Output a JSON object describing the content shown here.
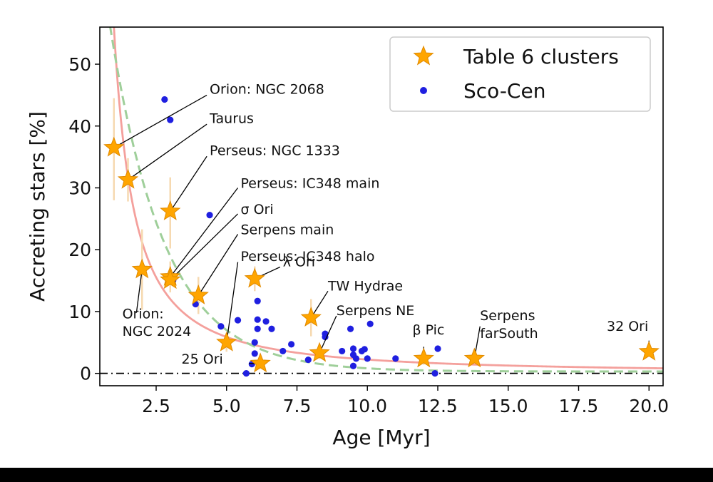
{
  "chart_data": {
    "type": "scatter",
    "xlabel": "Age [Myr]",
    "ylabel": "Accreting stars [%]",
    "xlim": [
      0.5,
      20.5
    ],
    "ylim": [
      -2,
      56
    ],
    "x_ticks": [
      2.5,
      5.0,
      7.5,
      10.0,
      12.5,
      15.0,
      17.5,
      20.0
    ],
    "x_tick_labels": [
      "2.5",
      "5.0",
      "7.5",
      "10.0",
      "12.5",
      "15.0",
      "17.5",
      "20.0"
    ],
    "y_ticks": [
      0,
      10,
      20,
      30,
      40,
      50
    ],
    "y_tick_labels": [
      "0",
      "10",
      "20",
      "30",
      "40",
      "50"
    ],
    "legend": {
      "position": "top-right",
      "entries": [
        {
          "label": "Table 6 clusters",
          "marker": "star",
          "color": "#FFA500"
        },
        {
          "label": "Sco-Cen",
          "marker": "dot",
          "color": "#1f1fe0"
        }
      ]
    },
    "colors": {
      "star": "#FFA500",
      "star_edge": "#e08a00",
      "scocen": "#1f1fe0",
      "fit_solid": "#f4a09c",
      "fit_dashed": "#9fcf9a",
      "errorbar": "#f6d9b0",
      "zero_line": "#000000"
    },
    "lines": [
      {
        "name": "fit-solid",
        "style": "solid",
        "model": "power",
        "a": 56,
        "n": 1.4,
        "offset": 0
      },
      {
        "name": "fit-dashed",
        "style": "dashed",
        "model": "exp",
        "a": 87,
        "tau": 1.95,
        "offset": 0.3
      },
      {
        "name": "zero-line",
        "style": "dashdot",
        "y": 0
      }
    ],
    "clusters": [
      {
        "name": "Orion: NGC 2068",
        "x": 1.0,
        "y": 36.5,
        "yerr": [
          8.5,
          8.0
        ],
        "label_lines": [
          "Orion: NGC 2068"
        ]
      },
      {
        "name": "Taurus",
        "x": 1.5,
        "y": 31.3,
        "yerr": [
          3.5,
          3.5
        ],
        "label_lines": [
          "Taurus"
        ]
      },
      {
        "name": "Perseus: NGC 1333",
        "x": 3.0,
        "y": 26.2,
        "yerr": [
          6.0,
          5.5
        ],
        "label_lines": [
          "Perseus: NGC 1333"
        ]
      },
      {
        "name": "Perseus: IC348 main",
        "x": 3.0,
        "y": 15.6,
        "yerr": [
          2.5,
          2.5
        ],
        "label_lines": [
          "Perseus: IC348 main"
        ]
      },
      {
        "name": "σ Ori",
        "x": 3.0,
        "y": 15.1,
        "yerr": [
          2.0,
          2.0
        ],
        "label_lines": [
          "σ Ori"
        ]
      },
      {
        "name": "Serpens main",
        "x": 4.0,
        "y": 12.6,
        "yerr": [
          3.0,
          3.0
        ],
        "label_lines": [
          "Serpens main"
        ]
      },
      {
        "name": "Perseus: IC348 halo",
        "x": 5.0,
        "y": 5.0,
        "yerr": [
          1.5,
          1.5
        ],
        "label_lines": [
          "Perseus: IC348 halo"
        ]
      },
      {
        "name": "Orion: NGC 2024",
        "x": 2.0,
        "y": 16.8,
        "yerr": [
          6.5,
          6.5
        ],
        "label_lines": [
          "Orion:",
          "NGC 2024"
        ]
      },
      {
        "name": "λ Ori",
        "x": 6.0,
        "y": 15.3,
        "yerr": [
          2.0,
          2.0
        ],
        "label_lines": [
          "λ  Ori"
        ]
      },
      {
        "name": "25 Ori",
        "x": 6.2,
        "y": 1.6,
        "yerr": [
          0.8,
          0.8
        ],
        "label_lines": [
          "25 Ori"
        ]
      },
      {
        "name": "TW Hydrae",
        "x": 8.0,
        "y": 9.0,
        "yerr": [
          3.0,
          3.0
        ],
        "label_lines": [
          "TW Hydrae"
        ]
      },
      {
        "name": "Serpens NE",
        "x": 8.3,
        "y": 3.3,
        "yerr": [
          1.0,
          1.0
        ],
        "label_lines": [
          "Serpens NE"
        ]
      },
      {
        "name": "β Pic",
        "x": 12.0,
        "y": 2.4,
        "yerr": [
          1.0,
          1.0
        ],
        "label_lines": [
          "β Pic"
        ]
      },
      {
        "name": "Serpens farSouth",
        "x": 13.8,
        "y": 2.4,
        "yerr": [
          0.8,
          0.8
        ],
        "label_lines": [
          "Serpens",
          "farSouth"
        ]
      },
      {
        "name": "32 Ori",
        "x": 20.0,
        "y": 3.5,
        "yerr": [
          0.6,
          0.6
        ],
        "label_lines": [
          "32 Ori"
        ]
      }
    ],
    "scocen": [
      {
        "x": 2.8,
        "y": 44.3
      },
      {
        "x": 3.0,
        "y": 41.0
      },
      {
        "x": 4.4,
        "y": 25.6
      },
      {
        "x": 3.1,
        "y": 15.0
      },
      {
        "x": 3.9,
        "y": 11.2
      },
      {
        "x": 4.8,
        "y": 7.6
      },
      {
        "x": 5.4,
        "y": 8.6
      },
      {
        "x": 6.1,
        "y": 11.7
      },
      {
        "x": 6.1,
        "y": 8.7
      },
      {
        "x": 6.1,
        "y": 7.2
      },
      {
        "x": 6.4,
        "y": 8.4
      },
      {
        "x": 6.6,
        "y": 7.2
      },
      {
        "x": 6.0,
        "y": 5.0
      },
      {
        "x": 6.0,
        "y": 3.2
      },
      {
        "x": 5.9,
        "y": 1.5
      },
      {
        "x": 5.7,
        "y": 0.0
      },
      {
        "x": 7.0,
        "y": 3.6
      },
      {
        "x": 7.3,
        "y": 4.7
      },
      {
        "x": 7.9,
        "y": 2.2
      },
      {
        "x": 8.5,
        "y": 6.4
      },
      {
        "x": 8.5,
        "y": 5.9
      },
      {
        "x": 9.1,
        "y": 3.6
      },
      {
        "x": 9.4,
        "y": 7.2
      },
      {
        "x": 9.5,
        "y": 4.0
      },
      {
        "x": 9.5,
        "y": 3.0
      },
      {
        "x": 9.6,
        "y": 2.4
      },
      {
        "x": 9.5,
        "y": 1.2
      },
      {
        "x": 9.8,
        "y": 3.6
      },
      {
        "x": 9.9,
        "y": 3.9
      },
      {
        "x": 10.0,
        "y": 2.4
      },
      {
        "x": 10.1,
        "y": 8.0
      },
      {
        "x": 11.0,
        "y": 2.4
      },
      {
        "x": 12.5,
        "y": 4.0
      },
      {
        "x": 12.4,
        "y": 0.0
      }
    ],
    "annotations": [
      {
        "cluster": "Orion: NGC 2068",
        "text_anchor_data": [
          4.4,
          45.2
        ],
        "label_lines": [
          "Orion: NGC 2068"
        ],
        "line_end_data": [
          4.3,
          45.0
        ]
      },
      {
        "cluster": "Taurus",
        "text_anchor_data": [
          4.4,
          40.5
        ],
        "label_lines": [
          "Taurus"
        ],
        "line_end_data": [
          4.3,
          40.3
        ]
      },
      {
        "cluster": "Perseus: NGC 1333",
        "text_anchor_data": [
          4.4,
          35.3
        ],
        "label_lines": [
          "Perseus: NGC 1333"
        ],
        "line_end_data": [
          4.3,
          35.1
        ]
      },
      {
        "cluster": "Perseus: IC348 main",
        "text_anchor_data": [
          5.5,
          30.0
        ],
        "label_lines": [
          "Perseus: IC348 main"
        ],
        "line_end_data": [
          5.4,
          30.0
        ]
      },
      {
        "cluster": "σ Ori",
        "text_anchor_data": [
          5.5,
          25.8
        ],
        "label_lines": [
          "σ Ori"
        ],
        "line_end_data": [
          5.4,
          25.8
        ]
      },
      {
        "cluster": "Serpens main",
        "text_anchor_data": [
          5.5,
          22.5
        ],
        "label_lines": [
          "Serpens main"
        ],
        "line_end_data": [
          5.4,
          22.5
        ]
      },
      {
        "cluster": "Perseus: IC348 halo",
        "text_anchor_data": [
          5.5,
          18.2
        ],
        "label_lines": [
          "Perseus: IC348 halo"
        ],
        "line_end_data": [
          5.4,
          18.0
        ]
      },
      {
        "cluster": "Orion: NGC 2024",
        "text_anchor_data": [
          1.3,
          8.9
        ],
        "label_lines": [
          "Orion:",
          "NGC 2024"
        ],
        "line_end_data": [
          1.8,
          9.8
        ]
      },
      {
        "cluster": "λ Ori",
        "text_anchor_data": [
          7.0,
          17.3
        ],
        "label_lines": [
          "λ  Ori"
        ],
        "line_end_data": [
          6.9,
          17.2
        ]
      },
      {
        "cluster": "TW Hydrae",
        "text_anchor_data": [
          8.6,
          13.4
        ],
        "label_lines": [
          "TW Hydrae"
        ],
        "line_end_data": [
          8.6,
          13.3
        ]
      },
      {
        "cluster": "Serpens NE",
        "text_anchor_data": [
          8.9,
          9.4
        ],
        "label_lines": [
          "Serpens NE"
        ],
        "line_end_data": [
          8.9,
          9.3
        ]
      },
      {
        "cluster": "β Pic",
        "text_anchor_data": [
          11.6,
          6.3
        ],
        "label_lines": [
          "β Pic"
        ],
        "line_end_data": [
          12.0,
          4.3
        ]
      },
      {
        "cluster": "Serpens farSouth",
        "text_anchor_data": [
          14.0,
          8.6
        ],
        "label_lines": [
          "Serpens",
          "farSouth"
        ],
        "line_end_data": [
          14.0,
          7.6
        ]
      },
      {
        "cluster": "32 Ori",
        "text_anchor_data": [
          18.5,
          6.9
        ],
        "label_lines": [
          "32 Ori"
        ],
        "line_end_data": [
          20.0,
          5.3
        ]
      },
      {
        "cluster": "25 Ori",
        "text_anchor_data": [
          3.4,
          1.6
        ],
        "label_lines": [
          "25 Ori"
        ],
        "line_end_data": [
          5.8,
          1.6
        ]
      }
    ]
  }
}
